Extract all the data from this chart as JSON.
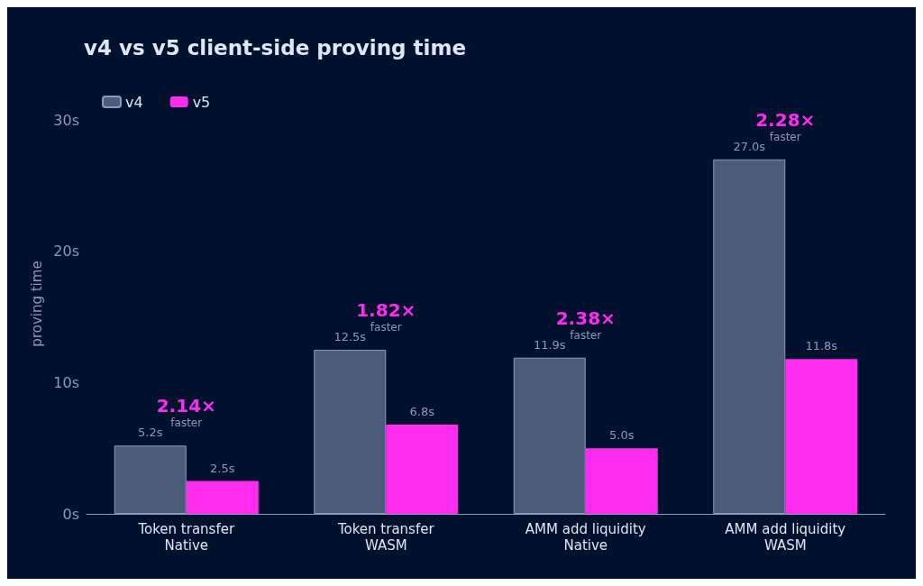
{
  "chart_data": {
    "type": "bar",
    "title": "v4 vs v5 client-side proving time",
    "ylabel": "proving time",
    "categories": [
      "Token transfer\nNative",
      "Token transfer\nWASM",
      "AMM add liquidity\nNative",
      "AMM add liquidity\nWASM"
    ],
    "series": [
      {
        "name": "v4",
        "color": "#4b5b7a",
        "values": [
          5.2,
          12.5,
          11.9,
          27.0
        ],
        "value_labels": [
          "5.2s",
          "12.5s",
          "11.9s",
          "27.0s"
        ]
      },
      {
        "name": "v5",
        "color": "#ff2cf0",
        "values": [
          2.5,
          6.8,
          5.0,
          11.8
        ],
        "value_labels": [
          "2.5s",
          "6.8s",
          "5.0s",
          "11.8s"
        ]
      }
    ],
    "ylim": [
      0,
      32
    ],
    "yticks": [
      {
        "value": 0,
        "label": "0s"
      },
      {
        "value": 10,
        "label": "10s"
      },
      {
        "value": 20,
        "label": "20s"
      },
      {
        "value": 30,
        "label": "30s"
      }
    ],
    "grid": false,
    "legend": "top left",
    "annotations": [
      "2.14×\nfaster",
      "1.82×\nfaster",
      "2.38×\nfaster",
      "2.28×\nfaster"
    ]
  }
}
